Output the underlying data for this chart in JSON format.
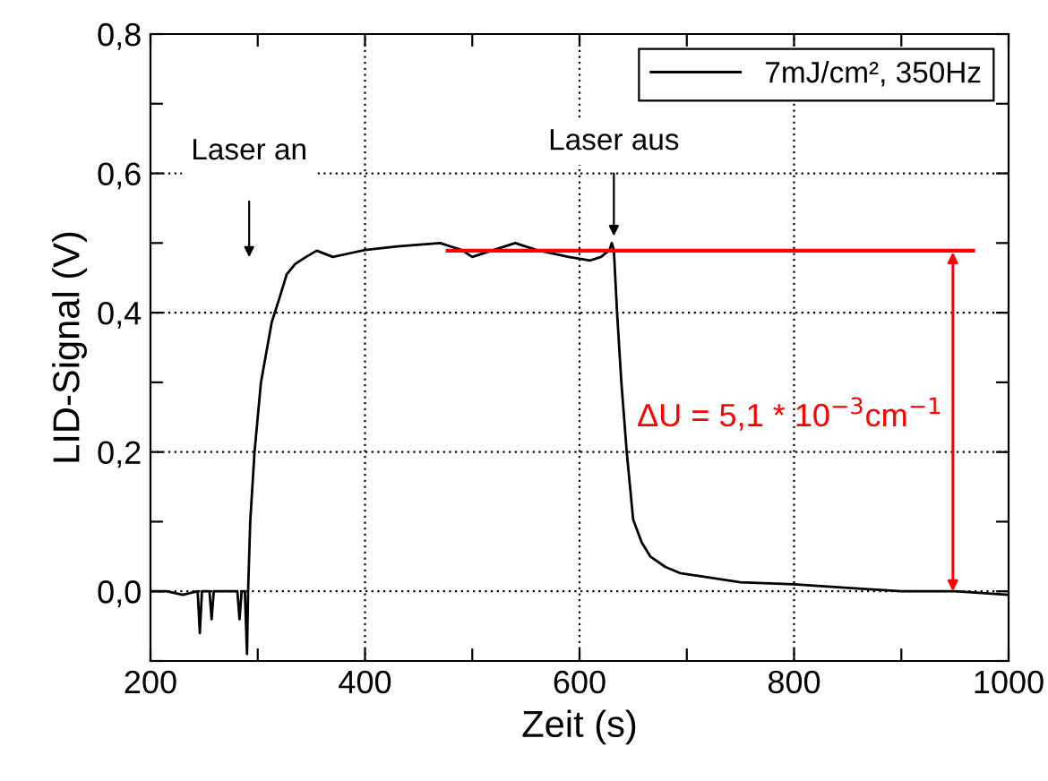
{
  "chart_data": {
    "type": "line",
    "xlabel": "Zeit (s)",
    "ylabel": "LID-Signal (V)",
    "xlim": [
      200,
      1000
    ],
    "ylim": [
      -0.1,
      0.8
    ],
    "xticks": [
      200,
      {
        "value": 300,
        "label": null
      },
      400,
      {
        "value": 500,
        "label": null
      },
      600,
      {
        "value": 700,
        "label": null
      },
      800,
      {
        "value": 900,
        "label": null
      },
      1000
    ],
    "yticks": [
      {
        "value": -0.1,
        "label": null
      },
      {
        "value": 0,
        "label": "0,0"
      },
      {
        "value": 0.1,
        "label": null
      },
      {
        "value": 0.2,
        "label": "0,2"
      },
      {
        "value": 0.3,
        "label": null
      },
      {
        "value": 0.4,
        "label": "0,4"
      },
      {
        "value": 0.5,
        "label": null
      },
      {
        "value": 0.6,
        "label": "0,6"
      },
      {
        "value": 0.7,
        "label": null
      },
      {
        "value": 0.8,
        "label": "0,8"
      }
    ],
    "grid": true,
    "legend": "top right",
    "line_style": "solid",
    "marker": "none",
    "series": [
      {
        "name": "7mJ/cm², 350Hz",
        "color": "#000000",
        "x": [
          200,
          215,
          230,
          244,
          246,
          248,
          255,
          257,
          259,
          270,
          281,
          283,
          285,
          288,
          290,
          291,
          293,
          297,
          303,
          313,
          320,
          327,
          335,
          345,
          355,
          370,
          385,
          400,
          430,
          470,
          490,
          500,
          520,
          540,
          560,
          590,
          610,
          620,
          628,
          630,
          632,
          635,
          639,
          644,
          650,
          658,
          666,
          680,
          694,
          720,
          750,
          800,
          850,
          900,
          950,
          1000
        ],
        "values": [
          0.0,
          0.0,
          -0.005,
          0.0,
          -0.06,
          0.0,
          0.0,
          -0.04,
          0.0,
          0.0,
          0.0,
          -0.04,
          0.0,
          0.0,
          -0.09,
          0.0,
          0.1,
          0.2,
          0.3,
          0.386,
          0.42,
          0.455,
          0.47,
          0.48,
          0.489,
          0.48,
          0.485,
          0.49,
          0.495,
          0.5,
          0.49,
          0.48,
          0.49,
          0.5,
          0.49,
          0.48,
          0.475,
          0.48,
          0.49,
          0.5,
          0.49,
          0.4,
          0.3,
          0.2,
          0.103,
          0.07,
          0.05,
          0.035,
          0.026,
          0.02,
          0.013,
          0.01,
          0.005,
          0.0,
          0.0,
          -0.005
        ]
      },
      {
        "color": "#ff0000",
        "x": [
          477,
          967
        ],
        "values": [
          0.489,
          0.489
        ]
      }
    ],
    "annotations": [
      "Laser an",
      {
        "text": "Laser aus",
        "x": 632,
        "y": 0.5
      },
      "ΔU = 5,1 * 10$^{−3}$cm$^{−1}$"
    ]
  }
}
